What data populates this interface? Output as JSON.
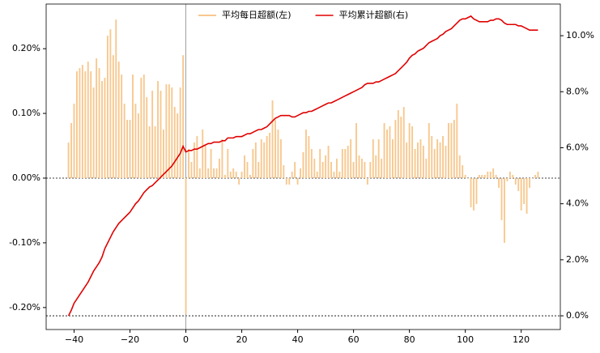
{
  "chart_data": {
    "type": "bar",
    "x": [
      -42,
      -41,
      -40,
      -39,
      -38,
      -37,
      -36,
      -35,
      -34,
      -33,
      -32,
      -31,
      -30,
      -29,
      -28,
      -27,
      -26,
      -25,
      -24,
      -23,
      -22,
      -21,
      -20,
      -19,
      -18,
      -17,
      -16,
      -15,
      -14,
      -13,
      -12,
      -11,
      -10,
      -9,
      -8,
      -7,
      -6,
      -5,
      -4,
      -3,
      -2,
      -1,
      0,
      1,
      2,
      3,
      4,
      5,
      6,
      7,
      8,
      9,
      10,
      11,
      12,
      13,
      14,
      15,
      16,
      17,
      18,
      19,
      20,
      21,
      22,
      23,
      24,
      25,
      26,
      27,
      28,
      29,
      30,
      31,
      32,
      33,
      34,
      35,
      36,
      37,
      38,
      39,
      40,
      41,
      42,
      43,
      44,
      45,
      46,
      47,
      48,
      49,
      50,
      51,
      52,
      53,
      54,
      55,
      56,
      57,
      58,
      59,
      60,
      61,
      62,
      63,
      64,
      65,
      66,
      67,
      68,
      69,
      70,
      71,
      72,
      73,
      74,
      75,
      76,
      77,
      78,
      79,
      80,
      81,
      82,
      83,
      84,
      85,
      86,
      87,
      88,
      89,
      90,
      91,
      92,
      93,
      94,
      95,
      96,
      97,
      98,
      99,
      100,
      101,
      102,
      103,
      104,
      105,
      106,
      107,
      108,
      109,
      110,
      111,
      112,
      113,
      114,
      115,
      116,
      117,
      118,
      119,
      120,
      121,
      122,
      123,
      124,
      125,
      126
    ],
    "series": [
      {
        "name": "平均每日超额(左)",
        "type": "bar",
        "color": "#f7c88f",
        "values": [
          0.055,
          0.085,
          0.115,
          0.165,
          0.17,
          0.175,
          0.165,
          0.18,
          0.165,
          0.14,
          0.185,
          0.17,
          0.15,
          0.155,
          0.22,
          0.23,
          0.19,
          0.245,
          0.18,
          0.16,
          0.115,
          0.09,
          0.09,
          0.16,
          0.115,
          0.1,
          0.155,
          0.16,
          0.125,
          0.08,
          0.135,
          0.08,
          0.15,
          0.135,
          0.075,
          0.145,
          0.145,
          0.14,
          0.11,
          0.1,
          0.14,
          0.19,
          -0.21,
          0.045,
          0.025,
          0.055,
          0.065,
          0.015,
          0.075,
          0.05,
          0.015,
          0.045,
          0.015,
          0.015,
          0.03,
          0.06,
          0.005,
          0.045,
          0.01,
          0.015,
          0.01,
          -0.01,
          0.01,
          0.035,
          0.025,
          0.005,
          0.045,
          0.055,
          0.025,
          0.06,
          0.055,
          0.065,
          0.07,
          0.12,
          0.09,
          0.075,
          0.06,
          0.02,
          -0.01,
          -0.01,
          0.01,
          0.025,
          -0.01,
          0.015,
          0.04,
          0.075,
          0.065,
          0.045,
          0.03,
          0.01,
          0.045,
          0.025,
          0.035,
          0.05,
          0.025,
          0.01,
          0.03,
          0.01,
          0.045,
          0.045,
          0.05,
          0.06,
          0.025,
          0.085,
          0.035,
          0.03,
          0.025,
          -0.01,
          0.025,
          0.06,
          0.035,
          0.06,
          0.03,
          0.085,
          0.075,
          0.08,
          0.06,
          0.09,
          0.105,
          0.095,
          0.11,
          0.055,
          0.085,
          0.08,
          0.045,
          0.055,
          0.06,
          0.05,
          0.03,
          0.085,
          0.065,
          0.045,
          0.06,
          0.055,
          0.065,
          0.05,
          0.085,
          0.085,
          0.09,
          0.115,
          0.035,
          0.02,
          0.005,
          0.0,
          -0.045,
          -0.05,
          -0.04,
          0.005,
          0.005,
          0.005,
          0.01,
          0.01,
          0.015,
          0.005,
          -0.015,
          -0.065,
          -0.1,
          -0.005,
          0.01,
          0.005,
          -0.01,
          -0.02,
          -0.05,
          -0.04,
          -0.055,
          -0.015,
          0.0,
          0.005,
          0.01
        ]
      },
      {
        "name": "平均累计超额(右)",
        "type": "line",
        "axis": "y2",
        "color": "#e00000",
        "values": [
          0.0,
          0.2,
          0.45,
          0.6,
          0.75,
          0.9,
          1.05,
          1.2,
          1.4,
          1.6,
          1.75,
          1.9,
          2.1,
          2.4,
          2.6,
          2.8,
          3.0,
          3.15,
          3.3,
          3.4,
          3.5,
          3.6,
          3.7,
          3.85,
          4.0,
          4.1,
          4.25,
          4.4,
          4.5,
          4.6,
          4.65,
          4.75,
          4.85,
          4.95,
          5.05,
          5.15,
          5.25,
          5.35,
          5.5,
          5.65,
          5.8,
          6.05,
          5.85,
          5.9,
          5.9,
          5.95,
          5.95,
          6.0,
          6.05,
          6.1,
          6.15,
          6.15,
          6.2,
          6.2,
          6.2,
          6.25,
          6.25,
          6.35,
          6.35,
          6.35,
          6.4,
          6.4,
          6.4,
          6.45,
          6.5,
          6.5,
          6.55,
          6.6,
          6.65,
          6.65,
          6.7,
          6.75,
          6.85,
          6.95,
          7.05,
          7.1,
          7.15,
          7.15,
          7.15,
          7.15,
          7.1,
          7.1,
          7.15,
          7.2,
          7.25,
          7.25,
          7.3,
          7.3,
          7.35,
          7.4,
          7.45,
          7.5,
          7.55,
          7.6,
          7.6,
          7.65,
          7.7,
          7.75,
          7.8,
          7.85,
          7.9,
          7.95,
          8.0,
          8.05,
          8.1,
          8.15,
          8.25,
          8.3,
          8.3,
          8.3,
          8.35,
          8.35,
          8.4,
          8.45,
          8.5,
          8.55,
          8.6,
          8.65,
          8.75,
          8.85,
          8.95,
          9.05,
          9.2,
          9.3,
          9.35,
          9.45,
          9.5,
          9.55,
          9.65,
          9.75,
          9.8,
          9.85,
          9.9,
          10.0,
          10.05,
          10.15,
          10.2,
          10.25,
          10.35,
          10.45,
          10.55,
          10.6,
          10.6,
          10.65,
          10.7,
          10.6,
          10.55,
          10.5,
          10.5,
          10.5,
          10.5,
          10.55,
          10.55,
          10.6,
          10.6,
          10.55,
          10.45,
          10.4,
          10.4,
          10.4,
          10.4,
          10.35,
          10.35,
          10.3,
          10.25,
          10.2,
          10.2,
          10.2,
          10.2
        ]
      }
    ],
    "xlim": [
      -50,
      134
    ],
    "xticks": [
      {
        "value": -40,
        "label": "−40"
      },
      {
        "value": -20,
        "label": "−20"
      },
      0,
      20,
      40,
      60,
      80,
      100,
      120
    ],
    "ylim": [
      -0.234,
      0.269
    ],
    "yticks": [
      {
        "value": -0.2,
        "label": "-0.20%"
      },
      {
        "value": -0.1,
        "label": "-0.10%"
      },
      {
        "value": 0,
        "label": "0.00%"
      },
      {
        "value": 0.1,
        "label": "0.10%"
      },
      {
        "value": 0.2,
        "label": "0.20%"
      }
    ],
    "y2lim": [
      -0.49,
      11.13
    ],
    "y2ticks": [
      {
        "value": 0,
        "label": "0.0%"
      },
      {
        "value": 2,
        "label": "2.0%"
      },
      {
        "value": 4,
        "label": "4.0%"
      },
      {
        "value": 6,
        "label": "6.0%"
      },
      {
        "value": 8,
        "label": "8.0%"
      },
      {
        "value": 10,
        "label": "10.0%"
      }
    ],
    "legend": "upper center"
  }
}
